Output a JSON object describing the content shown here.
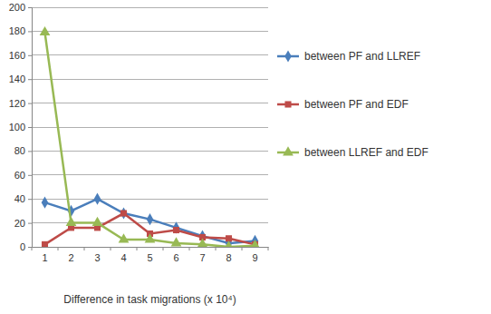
{
  "chart_data": {
    "type": "line",
    "x_label": "Difference in task migrations (x 10⁴)",
    "categories": [
      "1",
      "2",
      "3",
      "4",
      "5",
      "6",
      "7",
      "8",
      "9"
    ],
    "series": [
      {
        "name": "between PF and LLREF",
        "color": "#4a7ebb",
        "marker": "diamond",
        "values": [
          37,
          30,
          40,
          28,
          23,
          16,
          9,
          3,
          5
        ]
      },
      {
        "name": "between PF and EDF",
        "color": "#be4b48",
        "marker": "square",
        "values": [
          2,
          16,
          16,
          28,
          11,
          14,
          8,
          7,
          2
        ]
      },
      {
        "name": "between LLREF and EDF",
        "color": "#98b954",
        "marker": "triangle",
        "values": [
          179,
          20,
          20,
          6,
          6,
          3,
          2,
          0,
          1
        ]
      }
    ],
    "ylim": [
      0,
      200
    ],
    "yticks": [
      0,
      20,
      40,
      60,
      80,
      100,
      120,
      140,
      160,
      180,
      200
    ],
    "grid": true,
    "legend": "right"
  }
}
